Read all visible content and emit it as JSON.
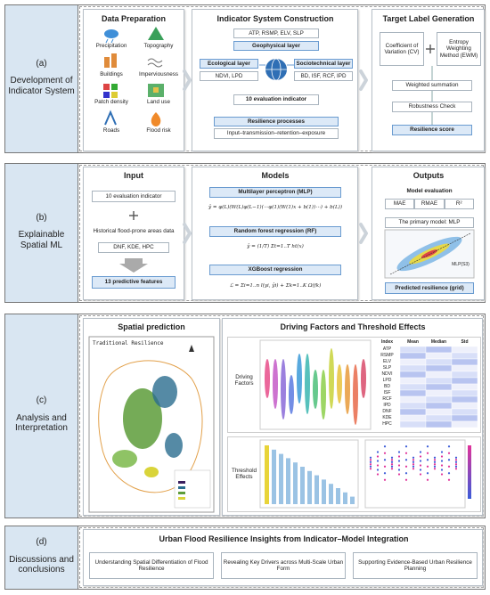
{
  "a": {
    "label": "(a)",
    "title": "Development of Indicator System",
    "data_preparation": {
      "title": "Data Preparation",
      "items": [
        "Precipitation",
        "Topography",
        "Buildings",
        "Imperviousness",
        "Patch density",
        "Land use",
        "Roads",
        "Flood risk"
      ]
    },
    "indicator_system": {
      "title": "Indicator System Construction",
      "geophysical_indicators": "ATP, RSMP, ELV, SLP",
      "geophysical_layer": "Geophysical layer",
      "ecological_layer": "Ecological layer",
      "ecological_indicators": "NDVI, LPD",
      "sociotechnical_layer": "Sociotechnical layer",
      "sociotechnical_indicators": "BD, ISF, RCF, IPD",
      "evaluation_indicator": "10 evaluation indicator",
      "resilience_processes": "Resilience processes",
      "process_chain": "Input–transmission–retention–exposure"
    },
    "target_label": {
      "title": "Target Label Generation",
      "cv": "Coefficient of Variation (CV)",
      "ewm": "Entropy Weighting Method (EWM)",
      "steps": [
        "Weighted summation",
        "Robustness Check"
      ],
      "result": "Resilience score"
    }
  },
  "b": {
    "label": "(b)",
    "title": "Explainable Spatial ML",
    "input": {
      "title": "Input",
      "evaluation_indicator": "10 evaluation indicator",
      "historical_data": "Historical flood-prone areas data",
      "historical_indicators": "DNF, KDE, HPC",
      "features": "13 predictive features"
    },
    "models": {
      "title": "Models",
      "mlp": "Multilayer perceptron (MLP)",
      "mlp_formula": "ŷ = φ(L)(W(L)φ(L−1)(⋯φ(1)(W(1)x + b(1))⋯) + b(L))",
      "rf": "Random forest regression (RF)",
      "rf_formula": "ŷ = (1/T) Σt=1..T ht(x)",
      "xgb": "XGBoost regression",
      "xgb_formula": "ℒ = Σi=1..n l(yi, ŷi) + Σk=1..K Ω(fk)"
    },
    "outputs": {
      "title": "Outputs",
      "evaluation": "Model evaluation",
      "metrics": [
        "MAE",
        "RMAE",
        "R²"
      ],
      "primary_model": "The primary model: MLP",
      "plot_label": "MLP(S3)",
      "result": "Predicted resilience (grid)"
    }
  },
  "c": {
    "label": "(c)",
    "title": "Analysis and Interpretation",
    "spatial": {
      "title": "Spatial prediction",
      "map_title": "Traditional Resilience"
    },
    "drivers": {
      "title": "Driving Factors and Threshold Effects",
      "driving_factors": "Driving Factors",
      "threshold_effects": "Threshold Effects",
      "table_header": [
        "Index",
        "Mean",
        "Median",
        "Std"
      ],
      "table_index": [
        "ATP",
        "RSMP",
        "ELV",
        "SLP",
        "NDVI",
        "LPD",
        "BD",
        "ISF",
        "RCF",
        "IPD",
        "DNF",
        "KDE",
        "HPC"
      ]
    }
  },
  "d": {
    "label": "(d)",
    "title": "Discussions and conclusions",
    "heading": "Urban Flood Resilience Insights from Indicator–Model Integration",
    "insights": [
      "Understanding Spatial Differentiation of Flood Resilience",
      "Revealing Key Drivers across Multi-Scale Urban Form",
      "Supporting Evidence-Based Urban Resilience Planning"
    ]
  }
}
